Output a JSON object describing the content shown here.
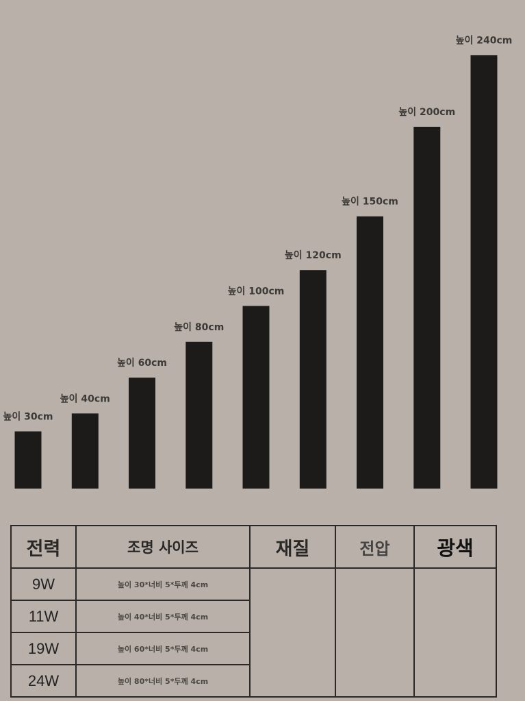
{
  "chart_data": {
    "type": "bar",
    "categories": [
      "높이 30cm",
      "높이 40cm",
      "높이 60cm",
      "높이 80cm",
      "높이 100cm",
      "높이 120cm",
      "높이 150cm",
      "높이 200cm",
      "높이 240cm"
    ],
    "values": [
      30,
      40,
      60,
      80,
      100,
      120,
      150,
      200,
      240
    ],
    "bar_color": "#1c1b1a",
    "background": "#b9b1a9",
    "title": "",
    "xlabel": "",
    "ylabel": "",
    "grid": false
  },
  "table": {
    "headers": {
      "power": "전력",
      "size": "조명 사이즈",
      "material": "재질",
      "voltage": "전압",
      "light_color": "광색"
    },
    "rows": [
      {
        "power": "9W",
        "size": "높이 30*너비 5*두께 4cm"
      },
      {
        "power": "11W",
        "size": "높이 40*너비 5*두께 4cm"
      },
      {
        "power": "19W",
        "size": "높이 60*너비 5*두께 4cm"
      },
      {
        "power": "24W",
        "size": "높이 80*너비 5*두께 4cm"
      }
    ]
  }
}
